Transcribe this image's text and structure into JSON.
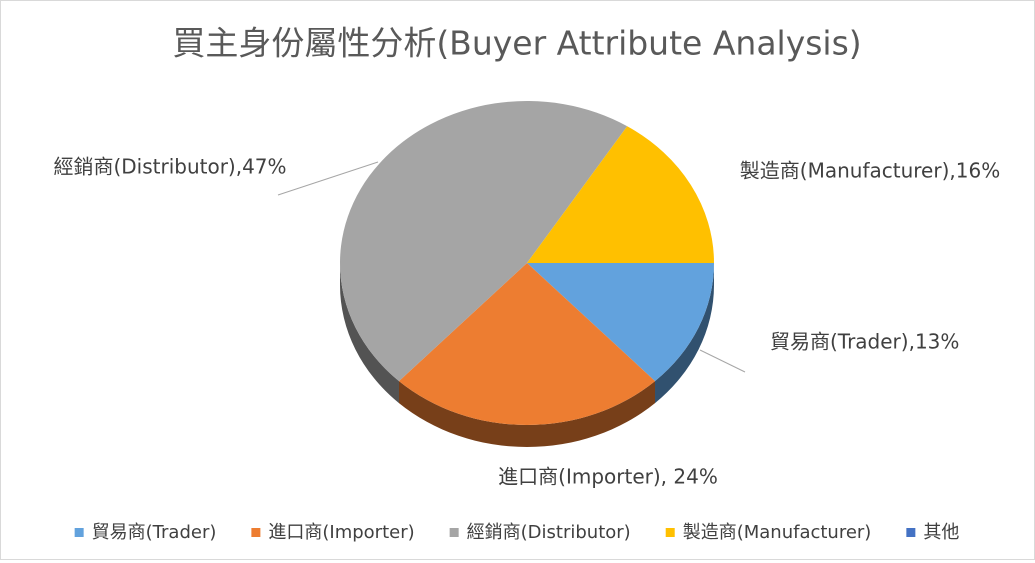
{
  "chart_data": {
    "type": "pie",
    "title": "買主身份屬性分析(Buyer Attribute Analysis)",
    "categories": [
      "貿易商(Trader)",
      "進口商(Importer)",
      "經銷商(Distributor)",
      "製造商(Manufacturer)",
      "其他"
    ],
    "values": [
      13,
      24,
      47,
      16,
      0
    ],
    "value_labels": [
      "貿易商(Trader),13%",
      "進口商(Importer), 24%",
      "經銷商(Distributor),47%",
      "製造商(Manufacturer),16%",
      null
    ],
    "colors": [
      "#62a2dd",
      "#ed7d31",
      "#a5a5a5",
      "#ffc000",
      "#4472c4"
    ],
    "legend": "bottom"
  }
}
